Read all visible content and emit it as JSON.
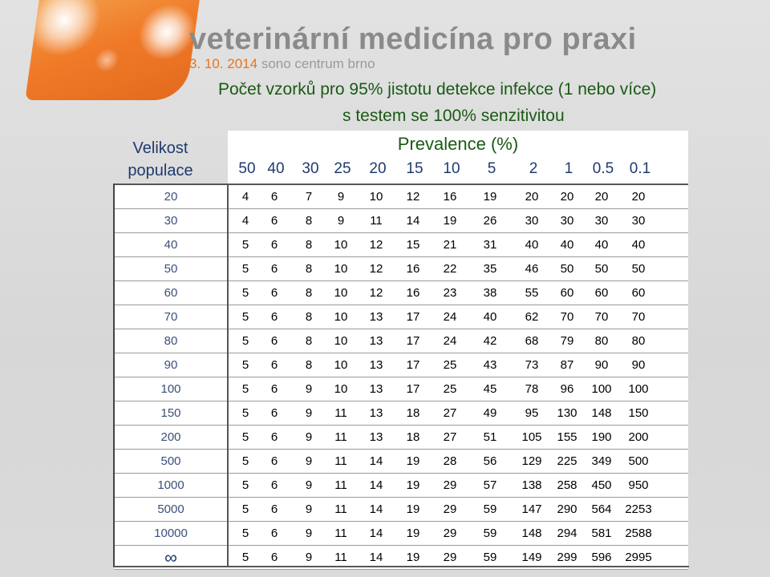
{
  "brand": {
    "title": "veterinární medicína pro praxi",
    "date": "3. 10. 2014",
    "venue": "sono centrum brno"
  },
  "heading": {
    "line1": "Počet vzorků pro 95% jistotu detekce infekce (1 nebo více)",
    "line2": "s testem se 100% senzitivitou"
  },
  "table": {
    "population_label": "Velikost populace",
    "prevalence_label": "Prevalence (%)",
    "prevalences": [
      "50",
      "40",
      "30",
      "25",
      "20",
      "15",
      "10",
      "5",
      "2",
      "1",
      "0.5",
      "0.1"
    ],
    "rows": [
      {
        "size": "20",
        "values": [
          "4",
          "6",
          "7",
          "9",
          "10",
          "12",
          "16",
          "19",
          "20",
          "20",
          "20",
          "20"
        ]
      },
      {
        "size": "30",
        "values": [
          "4",
          "6",
          "8",
          "9",
          "11",
          "14",
          "19",
          "26",
          "30",
          "30",
          "30",
          "30"
        ]
      },
      {
        "size": "40",
        "values": [
          "5",
          "6",
          "8",
          "10",
          "12",
          "15",
          "21",
          "31",
          "40",
          "40",
          "40",
          "40"
        ]
      },
      {
        "size": "50",
        "values": [
          "5",
          "6",
          "8",
          "10",
          "12",
          "16",
          "22",
          "35",
          "46",
          "50",
          "50",
          "50"
        ]
      },
      {
        "size": "60",
        "values": [
          "5",
          "6",
          "8",
          "10",
          "12",
          "16",
          "23",
          "38",
          "55",
          "60",
          "60",
          "60"
        ]
      },
      {
        "size": "70",
        "values": [
          "5",
          "6",
          "8",
          "10",
          "13",
          "17",
          "24",
          "40",
          "62",
          "70",
          "70",
          "70"
        ]
      },
      {
        "size": "80",
        "values": [
          "5",
          "6",
          "8",
          "10",
          "13",
          "17",
          "24",
          "42",
          "68",
          "79",
          "80",
          "80"
        ]
      },
      {
        "size": "90",
        "values": [
          "5",
          "6",
          "8",
          "10",
          "13",
          "17",
          "25",
          "43",
          "73",
          "87",
          "90",
          "90"
        ]
      },
      {
        "size": "100",
        "values": [
          "5",
          "6",
          "9",
          "10",
          "13",
          "17",
          "25",
          "45",
          "78",
          "96",
          "100",
          "100"
        ]
      },
      {
        "size": "150",
        "values": [
          "5",
          "6",
          "9",
          "11",
          "13",
          "18",
          "27",
          "49",
          "95",
          "130",
          "148",
          "150"
        ]
      },
      {
        "size": "200",
        "values": [
          "5",
          "6",
          "9",
          "11",
          "13",
          "18",
          "27",
          "51",
          "105",
          "155",
          "190",
          "200"
        ]
      },
      {
        "size": "500",
        "values": [
          "5",
          "6",
          "9",
          "11",
          "14",
          "19",
          "28",
          "56",
          "129",
          "225",
          "349",
          "500"
        ]
      },
      {
        "size": "1000",
        "values": [
          "5",
          "6",
          "9",
          "11",
          "14",
          "19",
          "29",
          "57",
          "138",
          "258",
          "450",
          "950"
        ]
      },
      {
        "size": "5000",
        "values": [
          "5",
          "6",
          "9",
          "11",
          "14",
          "19",
          "29",
          "59",
          "147",
          "290",
          "564",
          "2253"
        ]
      },
      {
        "size": "10000",
        "values": [
          "5",
          "6",
          "9",
          "11",
          "14",
          "19",
          "29",
          "59",
          "148",
          "294",
          "581",
          "2588"
        ]
      },
      {
        "size": "∞",
        "values": [
          "5",
          "6",
          "9",
          "11",
          "14",
          "19",
          "29",
          "59",
          "149",
          "299",
          "596",
          "2995"
        ]
      }
    ]
  }
}
